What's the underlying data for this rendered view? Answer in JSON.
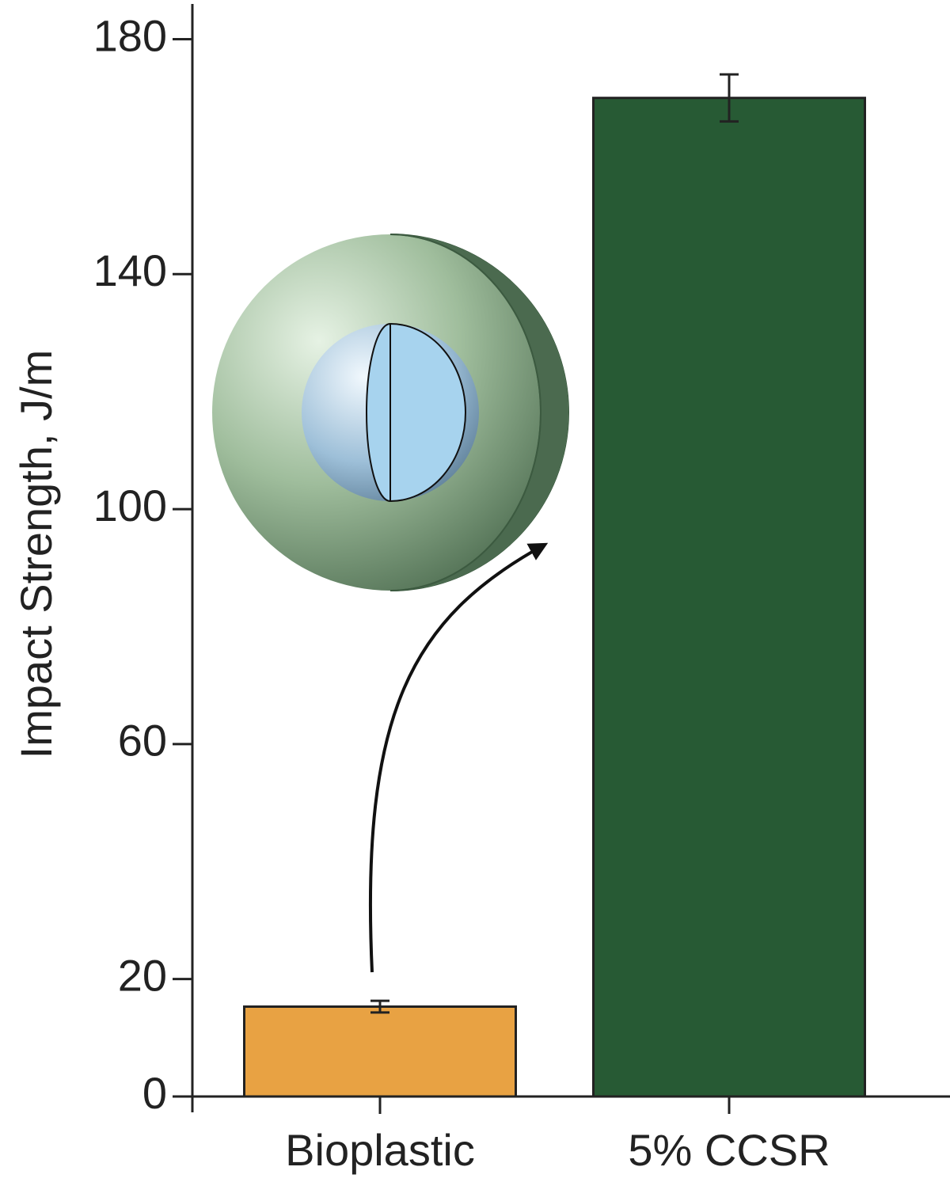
{
  "chart_data": {
    "type": "bar",
    "y_label": "Impact Strength, J/m",
    "categories": [
      "Bioplastic",
      "5% CCSR"
    ],
    "values": [
      15.3,
      170
    ],
    "errors": [
      1,
      4
    ],
    "colors": [
      "#e8a243",
      "#275a34"
    ],
    "ylim": [
      0,
      186
    ],
    "yticks": [
      0,
      20,
      60,
      100,
      140,
      180
    ]
  }
}
